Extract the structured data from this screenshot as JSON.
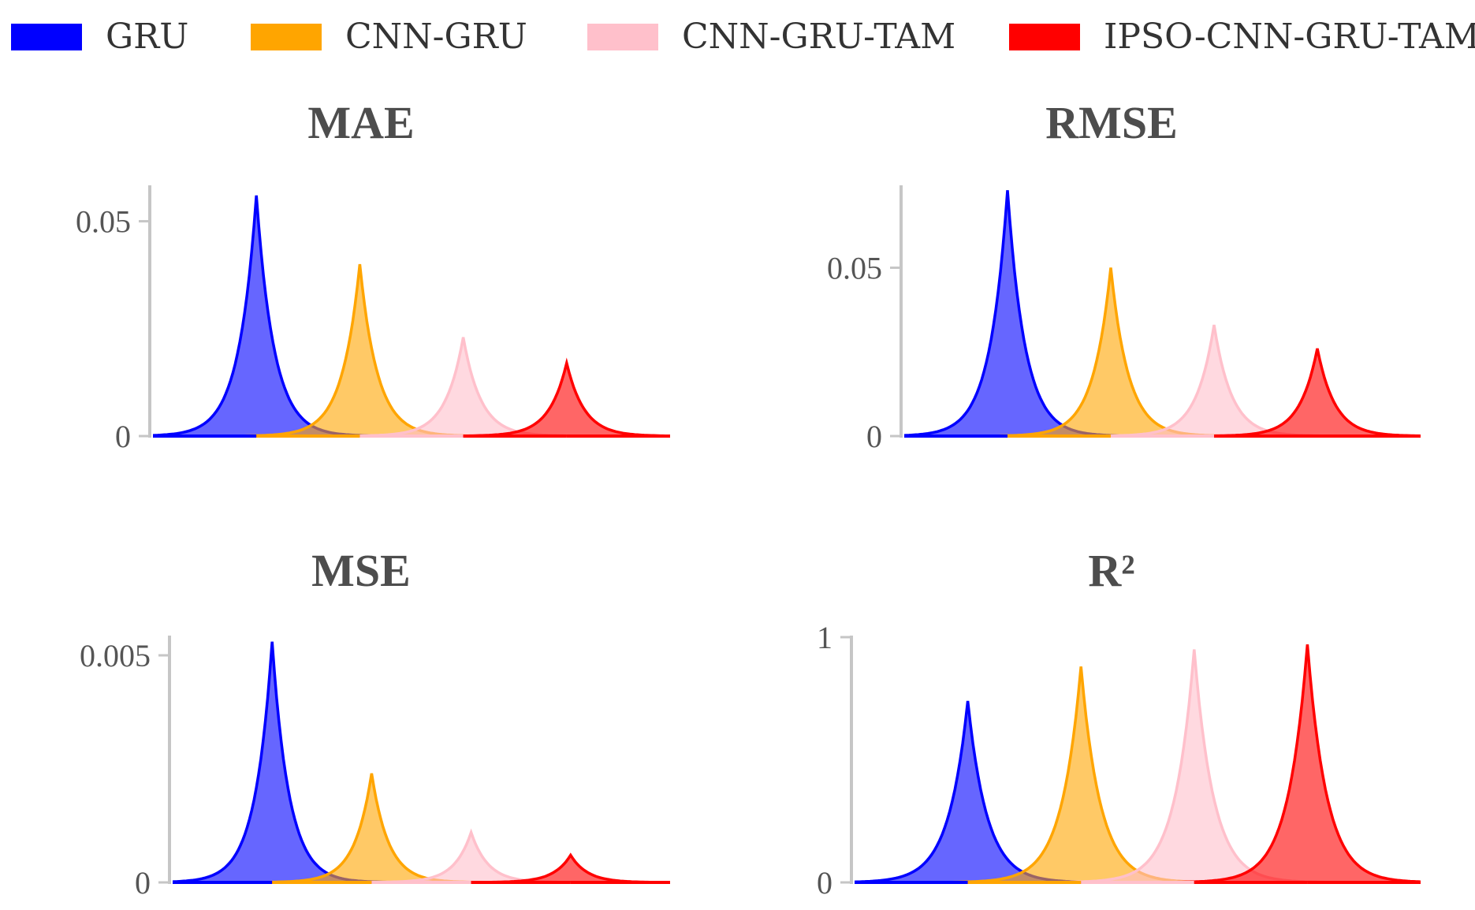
{
  "legend": [
    {
      "label": "GRU",
      "color": "#0000ff"
    },
    {
      "label": "CNN-GRU",
      "color": "#ffa500"
    },
    {
      "label": "CNN-GRU-TAM",
      "color": "#ffc0cb"
    },
    {
      "label": "IPSO-CNN-GRU-TAM",
      "color": "#ff0000"
    }
  ],
  "chart_data": [
    {
      "type": "area",
      "title": "MAE",
      "ylim": [
        0,
        0.058
      ],
      "yticks": [
        {
          "value": 0,
          "label": "0"
        },
        {
          "value": 0.05,
          "label": "0.05"
        }
      ],
      "series": [
        {
          "name": "GRU",
          "peak": 0.056
        },
        {
          "name": "CNN-GRU",
          "peak": 0.04
        },
        {
          "name": "CNN-GRU-TAM",
          "peak": 0.023
        },
        {
          "name": "IPSO-CNN-GRU-TAM",
          "peak": 0.017
        }
      ]
    },
    {
      "type": "area",
      "title": "RMSE",
      "ylim": [
        0,
        0.074
      ],
      "yticks": [
        {
          "value": 0,
          "label": "0"
        },
        {
          "value": 0.05,
          "label": "0.05"
        }
      ],
      "series": [
        {
          "name": "GRU",
          "peak": 0.073
        },
        {
          "name": "CNN-GRU",
          "peak": 0.05
        },
        {
          "name": "CNN-GRU-TAM",
          "peak": 0.033
        },
        {
          "name": "IPSO-CNN-GRU-TAM",
          "peak": 0.026
        }
      ]
    },
    {
      "type": "area",
      "title": "MSE",
      "ylim": [
        0,
        0.0054
      ],
      "yticks": [
        {
          "value": 0,
          "label": "0"
        },
        {
          "value": 0.005,
          "label": "0.005"
        }
      ],
      "series": [
        {
          "name": "GRU",
          "peak": 0.0053
        },
        {
          "name": "CNN-GRU",
          "peak": 0.0024
        },
        {
          "name": "CNN-GRU-TAM",
          "peak": 0.0011
        },
        {
          "name": "IPSO-CNN-GRU-TAM",
          "peak": 0.0006
        }
      ]
    },
    {
      "type": "area",
      "title": "R²",
      "ylim": [
        0,
        1.0
      ],
      "yticks": [
        {
          "value": 0,
          "label": "0"
        },
        {
          "value": 1,
          "label": "1"
        }
      ],
      "series": [
        {
          "name": "GRU",
          "peak": 0.74
        },
        {
          "name": "CNN-GRU",
          "peak": 0.88
        },
        {
          "name": "CNN-GRU-TAM",
          "peak": 0.95
        },
        {
          "name": "IPSO-CNN-GRU-TAM",
          "peak": 0.97
        }
      ]
    }
  ]
}
